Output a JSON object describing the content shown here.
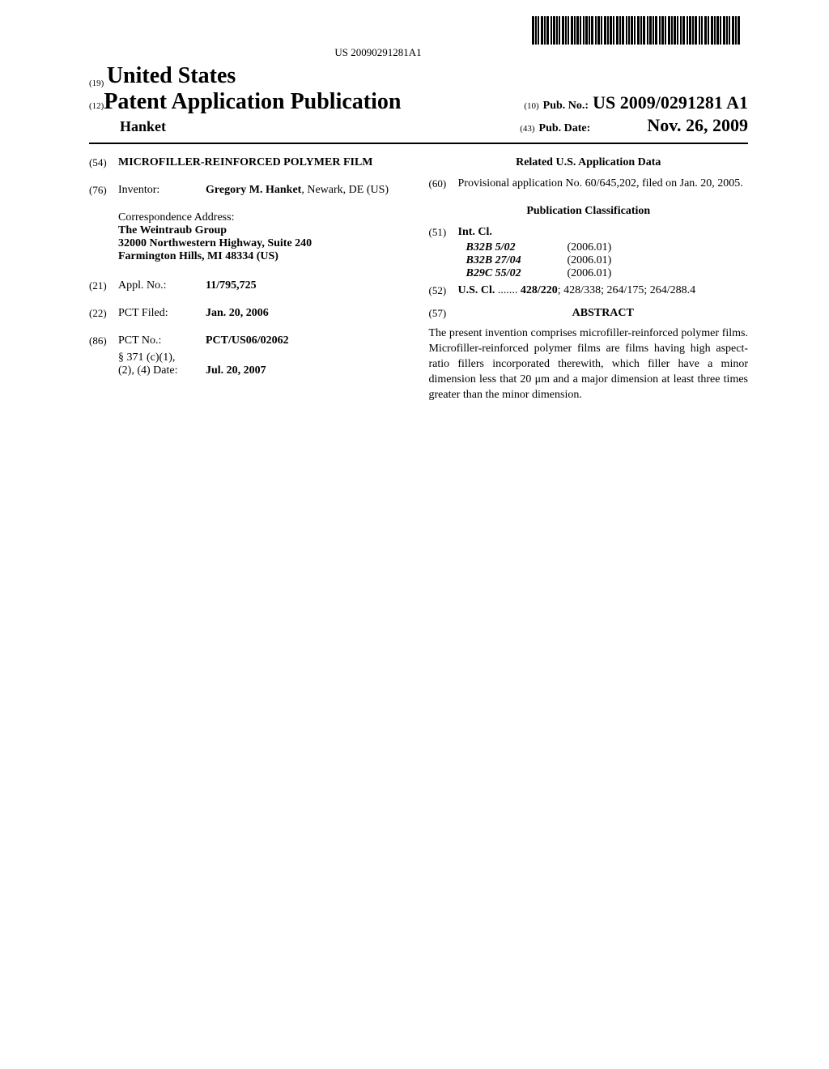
{
  "barcode_text": "US 20090291281A1",
  "header": {
    "country_code": "(19)",
    "country": "United States",
    "pub_type_code": "(12)",
    "pub_type": "Patent Application Publication",
    "pub_no_code": "(10)",
    "pub_no_label": "Pub. No.:",
    "pub_no_value": "US 2009/0291281 A1",
    "author": "Hanket",
    "pub_date_code": "(43)",
    "pub_date_label": "Pub. Date:",
    "pub_date_value": "Nov. 26, 2009"
  },
  "left": {
    "title_code": "(54)",
    "title": "MICROFILLER-REINFORCED POLYMER FILM",
    "inventor_code": "(76)",
    "inventor_label": "Inventor:",
    "inventor_name": "Gregory M. Hanket",
    "inventor_loc": ", Newark, DE (US)",
    "corr_label": "Correspondence Address:",
    "corr_line1": "The Weintraub Group",
    "corr_line2": "32000 Northwestern Highway, Suite 240",
    "corr_line3": "Farmington Hills, MI 48334 (US)",
    "appl_code": "(21)",
    "appl_label": "Appl. No.:",
    "appl_value": "11/795,725",
    "pct_filed_code": "(22)",
    "pct_filed_label": "PCT Filed:",
    "pct_filed_value": "Jan. 20, 2006",
    "pct_no_code": "(86)",
    "pct_no_label": "PCT No.:",
    "pct_no_value": "PCT/US06/02062",
    "section_371_label": "§ 371 (c)(1),",
    "section_371_line2": "(2), (4) Date:",
    "section_371_date": "Jul. 20, 2007"
  },
  "right": {
    "related_heading": "Related U.S. Application Data",
    "prov_code": "(60)",
    "prov_text": "Provisional application No. 60/645,202, filed on Jan. 20, 2005.",
    "pub_class_heading": "Publication Classification",
    "int_cl_code": "(51)",
    "int_cl_label": "Int. Cl.",
    "int_cl_items": [
      {
        "code": "B32B  5/02",
        "year": "(2006.01)"
      },
      {
        "code": "B32B  27/04",
        "year": "(2006.01)"
      },
      {
        "code": "B29C  55/02",
        "year": "(2006.01)"
      }
    ],
    "us_cl_code": "(52)",
    "us_cl_label": "U.S. Cl.",
    "us_cl_dots": ".......",
    "us_cl_value_bold": "428/220",
    "us_cl_value_rest": "; 428/338; 264/175; 264/288.4",
    "abstract_code": "(57)",
    "abstract_heading": "ABSTRACT",
    "abstract_text": "The present invention comprises microfiller-reinforced polymer films. Microfiller-reinforced polymer films are films having high aspect-ratio fillers incorporated therewith, which filler have a minor dimension less that 20 μm and a major dimension at least three times greater than the minor dimension."
  },
  "barcode_pattern": [
    3,
    1,
    2,
    1,
    2,
    2,
    3,
    1,
    2,
    1,
    3,
    2,
    2,
    1,
    3,
    1,
    2,
    1,
    2,
    2,
    3,
    1,
    2,
    1,
    2,
    2,
    3,
    1,
    2,
    1,
    3,
    1,
    2,
    2,
    2,
    1,
    3,
    1,
    2,
    1,
    3,
    2,
    2,
    1,
    3,
    1,
    2,
    2,
    3,
    1,
    2,
    1,
    3,
    1,
    2,
    2,
    3,
    1,
    2,
    1,
    3,
    2,
    2,
    1,
    2,
    1,
    3,
    1,
    2,
    2,
    3,
    1,
    2,
    1,
    3,
    2,
    2,
    1,
    3,
    1,
    2,
    1,
    3,
    2,
    2,
    1,
    3,
    1,
    2,
    2,
    3,
    1,
    2,
    1,
    3,
    1,
    2,
    2,
    2,
    1,
    3,
    2,
    2,
    1,
    3,
    1,
    2,
    1,
    3,
    2,
    2,
    1,
    2,
    2,
    3,
    1,
    2,
    2,
    3,
    1,
    2,
    1,
    3,
    1,
    2,
    2,
    3,
    1,
    2,
    1,
    2,
    2,
    3,
    1,
    2,
    1,
    3
  ]
}
